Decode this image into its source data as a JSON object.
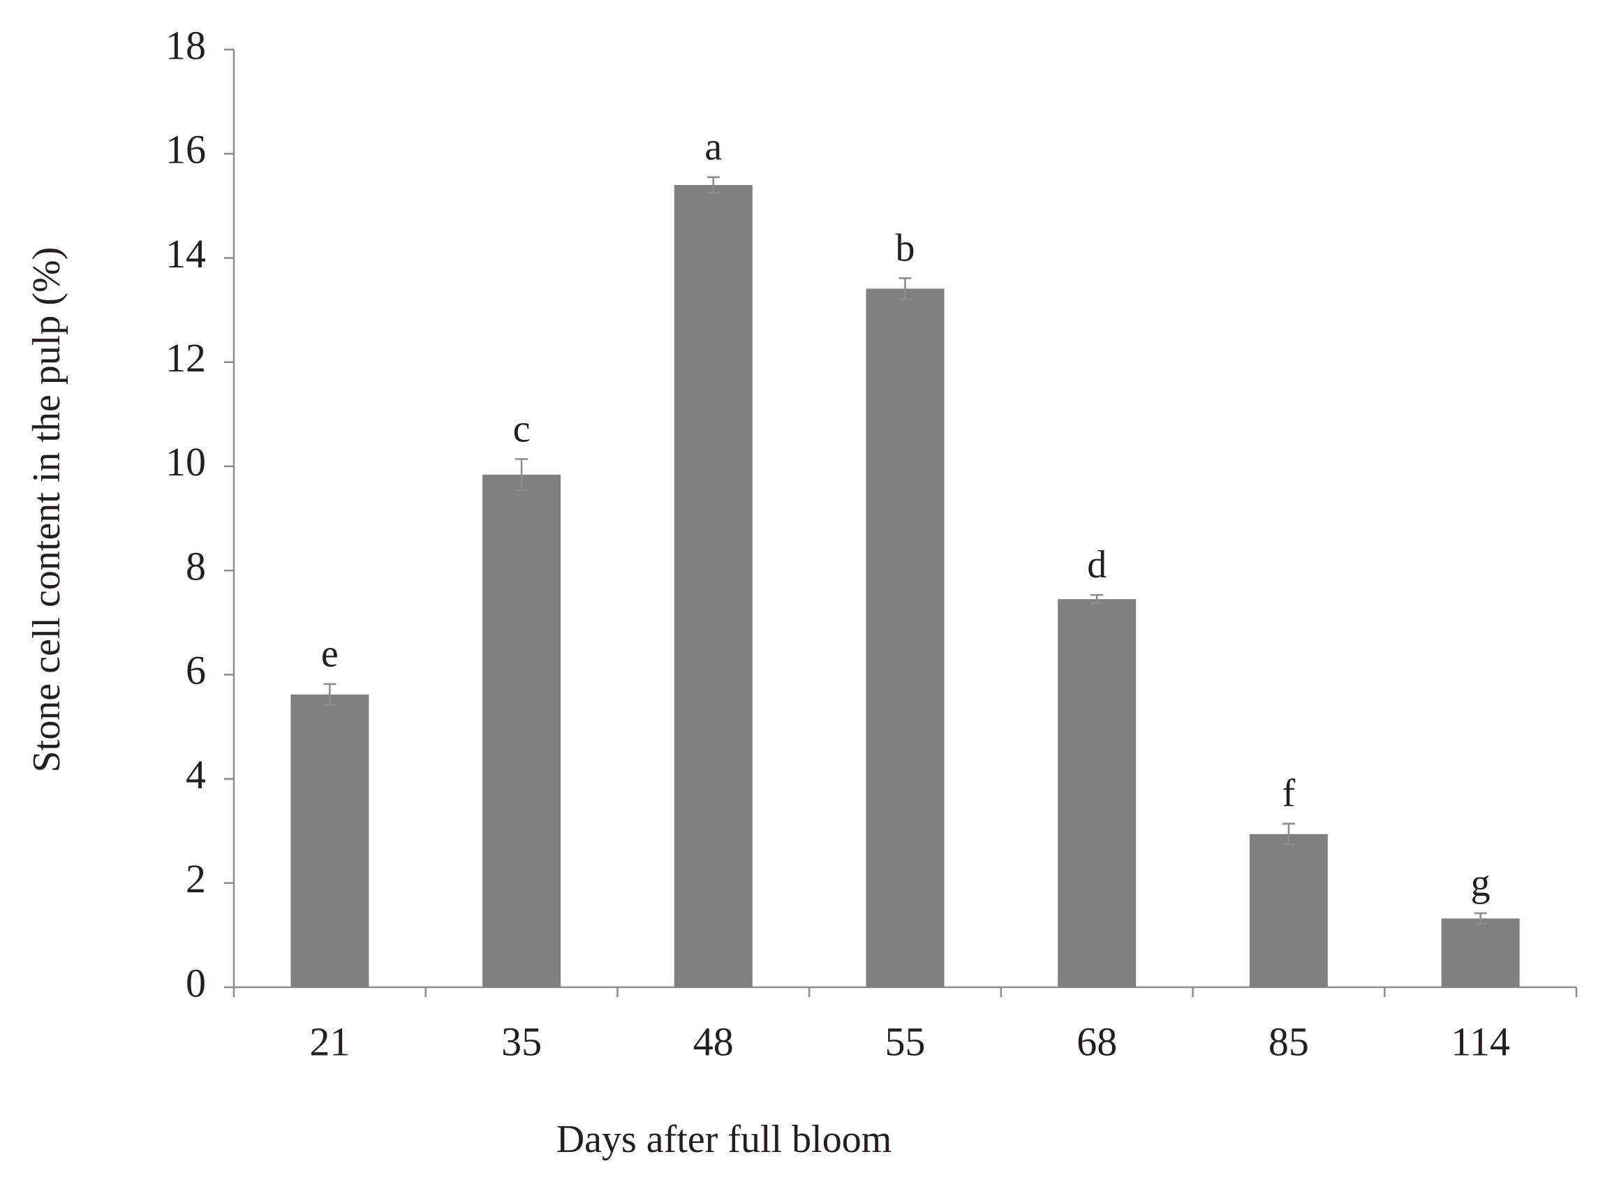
{
  "chart_data": {
    "type": "bar",
    "x_label": "Days after full bloom",
    "y_label": "Stone cell content in the pulp (%)",
    "categories": [
      "21",
      "35",
      "48",
      "55",
      "68",
      "85",
      "114"
    ],
    "values": [
      5.62,
      9.84,
      15.4,
      13.41,
      7.45,
      2.94,
      1.32
    ],
    "errors": [
      0.2,
      0.3,
      0.15,
      0.2,
      0.08,
      0.2,
      0.1
    ],
    "letters": [
      "e",
      "c",
      "a",
      "b",
      "d",
      "f",
      "g"
    ],
    "color": "#808080",
    "ylim": [
      0,
      18
    ],
    "yticks": [
      0,
      2,
      4,
      6,
      8,
      10,
      12,
      14,
      16,
      18
    ],
    "grid": false
  }
}
